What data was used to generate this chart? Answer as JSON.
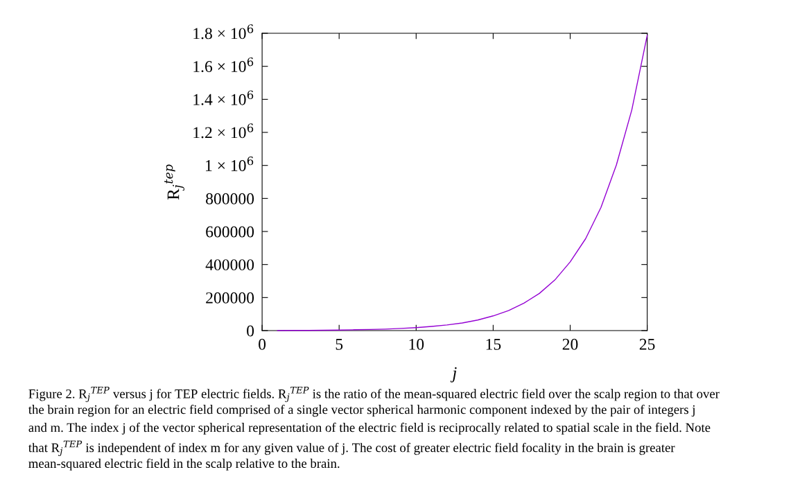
{
  "chart_data": {
    "type": "line",
    "xlabel": "j",
    "ylabel": "R$_{j}$$^{tep}$",
    "x": [
      1,
      2,
      3,
      4,
      5,
      6,
      7,
      8,
      9,
      10,
      11,
      12,
      13,
      14,
      15,
      16,
      17,
      18,
      19,
      20,
      21,
      22,
      23,
      24,
      25
    ],
    "series": [
      {
        "color": "#9400d3",
        "values": [
          0,
          1000,
          1000,
          2000,
          3000,
          5000,
          7000,
          9000,
          13000,
          18000,
          25000,
          34000,
          46000,
          64000,
          89000,
          121000,
          166000,
          225000,
          306000,
          416000,
          556000,
          746000,
          1003000,
          1336000,
          1787000
        ]
      }
    ],
    "xlim": [
      0,
      25
    ],
    "xticks": [
      0,
      5,
      10,
      15,
      20,
      25
    ],
    "ylim": [
      0,
      1800000
    ],
    "yticks": [
      0,
      200000,
      400000,
      600000,
      800000,
      {
        "value": 1000000,
        "label": "1 × 10$^{6}$"
      },
      {
        "value": 1200000,
        "label": "1.2 × 10$^{6}$"
      },
      {
        "value": 1400000,
        "label": "1.4 × 10$^{6}$"
      },
      {
        "value": 1600000,
        "label": "1.6 × 10$^{6}$"
      },
      {
        "value": 1800000,
        "label": "1.8 × 10$^{6}$"
      }
    ],
    "grid": false,
    "marker": "none",
    "line_style": "solid",
    "annotations": [
      "Figure 2. R$_{j}$$^{TEP}$ versus j for TEP electric fields. R$_{j}$$^{TEP}$ is the ratio of the mean-squared electric field over the scalp region to that over",
      "the brain region for an electric field comprised of a single vector spherical harmonic component indexed by the pair of integers j",
      "and m. The index j of the vector spherical representation of the electric field is reciprocally related to spatial scale in the field. Note",
      "that R$_{j}$$^{TEP}$ is independent of index m for any given value of j. The cost of greater electric field focality in the brain is greater",
      "mean-squared electric field in the scalp relative to the brain."
    ]
  }
}
